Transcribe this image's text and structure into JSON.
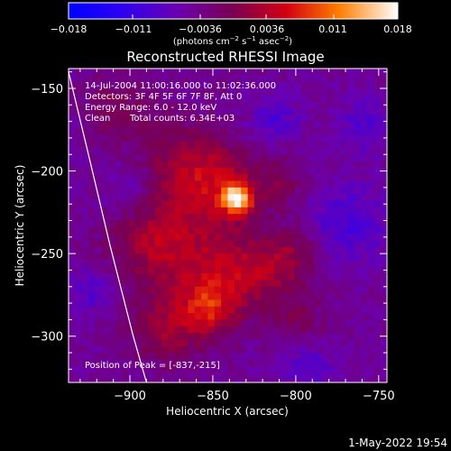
{
  "colorbar": {
    "ticks": [
      "−0.018",
      "−0.011",
      "−0.0036",
      "0.0036",
      "0.011",
      "0.018"
    ],
    "tick_values": [
      -0.018,
      -0.011,
      -0.0036,
      0.0036,
      0.011,
      0.018
    ],
    "range": [
      -0.018,
      0.018
    ],
    "units_prefix": "(photons cm",
    "units_exp1": "−2",
    "units_mid": " s",
    "units_exp2": "−1",
    "units_mid2": " asec",
    "units_exp3": "−2",
    "units_suffix": ")"
  },
  "title": "Reconstructed RHESSI Image",
  "annotations": {
    "time_range": "14-Jul-2004 11:00:16.000 to 11:02:36.000",
    "detectors": "Detectors: 3F 4F 5F 6F 7F 8F, Att 0",
    "energy": "Energy Range: 6.0 - 12.0 keV",
    "clean_label": "Clean",
    "counts": "Total counts: 6.34E+03",
    "peak": "Position of Peak = [-837,-215]"
  },
  "axes": {
    "xlabel": "Heliocentric X (arcsec)",
    "ylabel": "Heliocentric Y (arcsec)",
    "xticks": [
      "−900",
      "−850",
      "−800",
      "−750"
    ],
    "xtick_values": [
      -900,
      -850,
      -800,
      -750
    ],
    "yticks": [
      "−150",
      "−200",
      "−250",
      "−300"
    ],
    "ytick_values": [
      -150,
      -200,
      -250,
      -300
    ],
    "xlim": [
      -937,
      -745
    ],
    "ylim": [
      -328,
      -138
    ]
  },
  "chart_data": {
    "type": "heatmap",
    "title": "Reconstructed RHESSI Image",
    "xlabel": "Heliocentric X (arcsec)",
    "ylabel": "Heliocentric Y (arcsec)",
    "xlim": [
      -937,
      -745
    ],
    "ylim": [
      -328,
      -138
    ],
    "peak": {
      "x": -837,
      "y": -215
    },
    "value_range": [
      -0.018,
      0.018
    ],
    "blobs": [
      {
        "x": -837,
        "y": -215,
        "sigma": 6,
        "amp": 0.018
      },
      {
        "x": -845,
        "y": -207,
        "sigma": 15,
        "amp": 0.006
      },
      {
        "x": -870,
        "y": -198,
        "sigma": 20,
        "amp": 0.007
      },
      {
        "x": -890,
        "y": -240,
        "sigma": 18,
        "amp": 0.0065
      },
      {
        "x": -855,
        "y": -255,
        "sigma": 22,
        "amp": 0.0065
      },
      {
        "x": -828,
        "y": -262,
        "sigma": 14,
        "amp": 0.005
      },
      {
        "x": -855,
        "y": -282,
        "sigma": 12,
        "amp": 0.0085
      },
      {
        "x": -882,
        "y": -295,
        "sigma": 14,
        "amp": 0.006
      },
      {
        "x": -805,
        "y": -250,
        "sigma": 12,
        "amp": 0.0055
      },
      {
        "x": -812,
        "y": -205,
        "sigma": 10,
        "amp": 0.0045
      },
      {
        "x": -800,
        "y": -290,
        "sigma": 12,
        "amp": 0.004
      },
      {
        "x": -910,
        "y": -160,
        "sigma": 14,
        "amp": 0.004
      },
      {
        "x": -760,
        "y": -170,
        "sigma": 12,
        "amp": -0.004
      },
      {
        "x": -900,
        "y": -210,
        "sigma": 12,
        "amp": -0.004
      },
      {
        "x": -770,
        "y": -230,
        "sigma": 16,
        "amp": -0.005
      },
      {
        "x": -815,
        "y": -165,
        "sigma": 10,
        "amp": -0.0045
      },
      {
        "x": -795,
        "y": -315,
        "sigma": 12,
        "amp": -0.004
      },
      {
        "x": -925,
        "y": -270,
        "sigma": 10,
        "amp": -0.004
      }
    ],
    "baseline": -0.0045,
    "limb": [
      {
        "x": -937,
        "y": -140
      },
      {
        "x": -925,
        "y": -190
      },
      {
        "x": -912,
        "y": -245
      },
      {
        "x": -898,
        "y": -300
      },
      {
        "x": -890,
        "y": -328
      }
    ]
  },
  "timestamp": "1-May-2022 19:54",
  "colors": {
    "background": "#000000",
    "axis": "#ffffff",
    "limb_line": "#ffffff"
  }
}
